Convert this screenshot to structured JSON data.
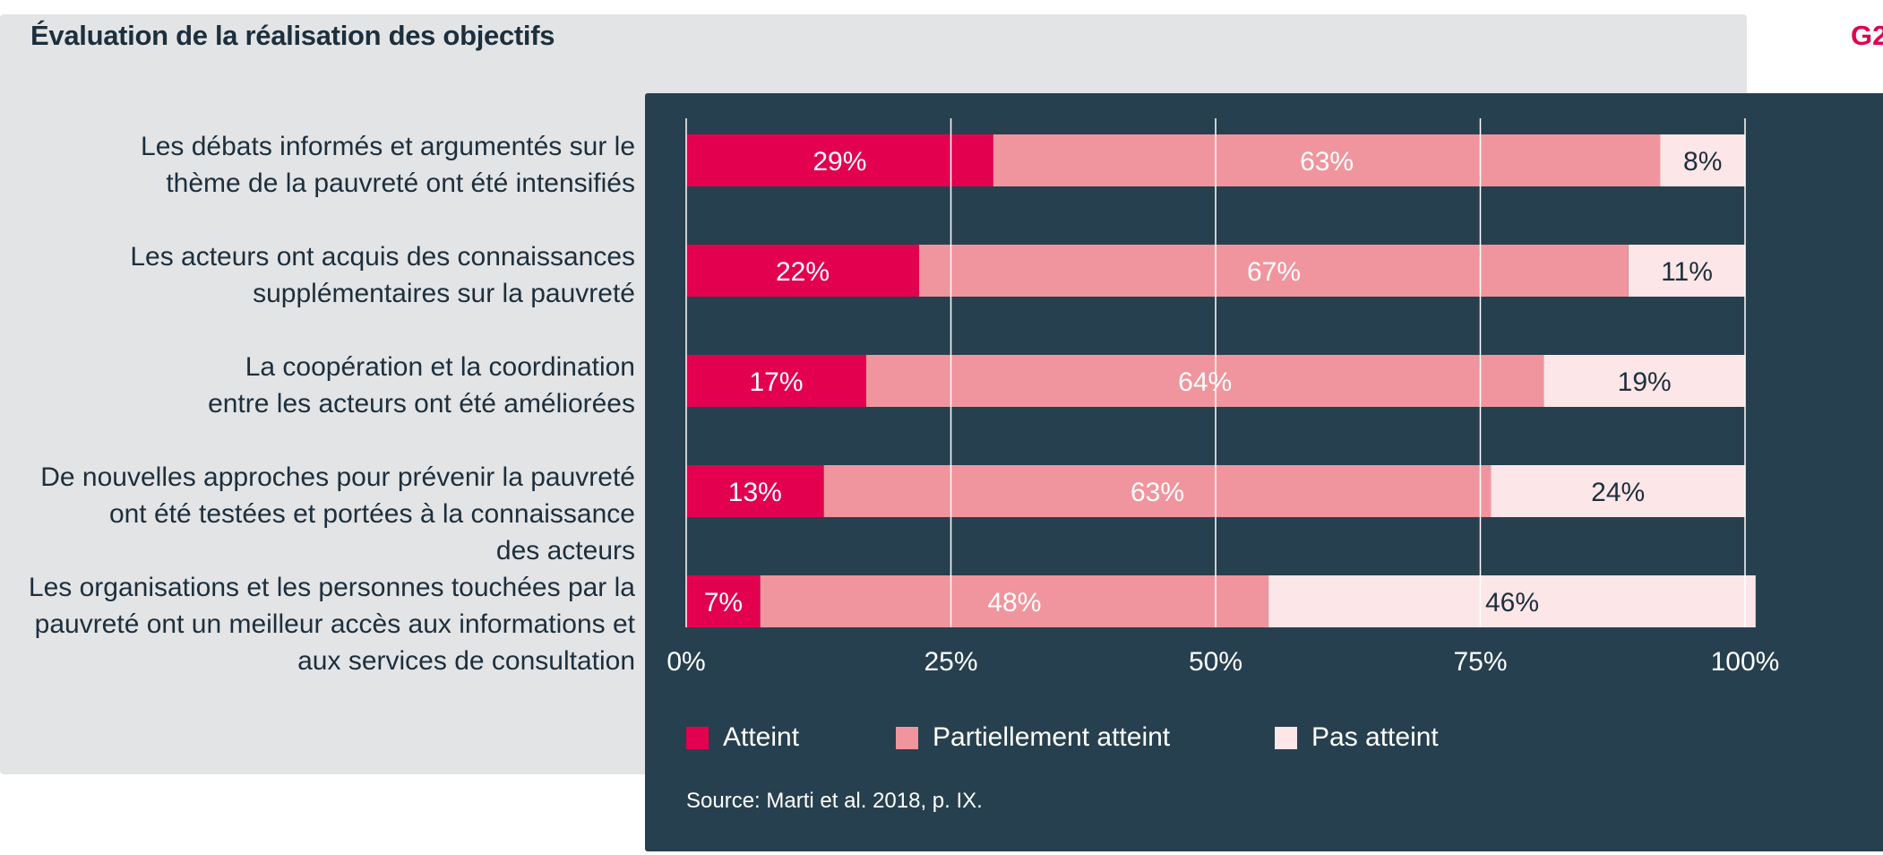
{
  "header": {
    "title": "Évaluation de la réalisation des objectifs",
    "figure_id": "G2"
  },
  "colors": {
    "atteint": "#e2004f",
    "partiel": "#f0959d",
    "pas": "#fde6e8",
    "label_on_dark": "#ffffff",
    "label_on_light": "#1d2f3c",
    "grid": "#ffffff"
  },
  "categories": [
    "Les débats informés et argumentés sur le\nthème de la pauvreté ont été intensifiés",
    "Les acteurs ont acquis des connaissances\nsupplémentaires sur la pauvreté",
    "La coopération et la coordination\nentre les acteurs ont été améliorées",
    "De nouvelles approches pour prévenir la pauvreté\nont été testées et portées à la connaissance\ndes acteurs",
    "Les organisations et les personnes touchées par la\npauvreté ont un meilleur accès aux informations et\naux services de consultation"
  ],
  "legend": [
    "Atteint",
    "Partiellement atteint",
    "Pas atteint"
  ],
  "source": "Source: Marti et al. 2018, p. IX.",
  "chart_data": {
    "type": "bar",
    "orientation": "horizontal",
    "stacked": true,
    "categories": [
      "Les débats informés et argumentés sur le thème de la pauvreté ont été intensifiés",
      "Les acteurs ont acquis des connaissances supplémentaires sur la pauvreté",
      "La coopération et la coordination entre les acteurs ont été améliorées",
      "De nouvelles approches pour prévenir la pauvreté ont été testées et portées à la connaissance des acteurs",
      "Les organisations et les personnes touchées par la pauvreté ont un meilleur accès aux informations et aux services de consultation"
    ],
    "series": [
      {
        "name": "Atteint",
        "values": [
          29,
          22,
          17,
          13,
          7
        ]
      },
      {
        "name": "Partiellement atteint",
        "values": [
          63,
          67,
          64,
          63,
          48
        ]
      },
      {
        "name": "Pas atteint",
        "values": [
          8,
          11,
          19,
          24,
          46
        ]
      }
    ],
    "data_labels": [
      [
        "29%",
        "63%",
        "8%"
      ],
      [
        "22%",
        "67%",
        "11%"
      ],
      [
        "17%",
        "64%",
        "19%"
      ],
      [
        "13%",
        "63%",
        "24%"
      ],
      [
        "7%",
        "48%",
        "46%"
      ]
    ],
    "xticks": [
      "0%",
      "25%",
      "50%",
      "75%",
      "100%"
    ],
    "xlim": [
      0,
      100
    ],
    "grid": true,
    "legend_position": "bottom"
  }
}
